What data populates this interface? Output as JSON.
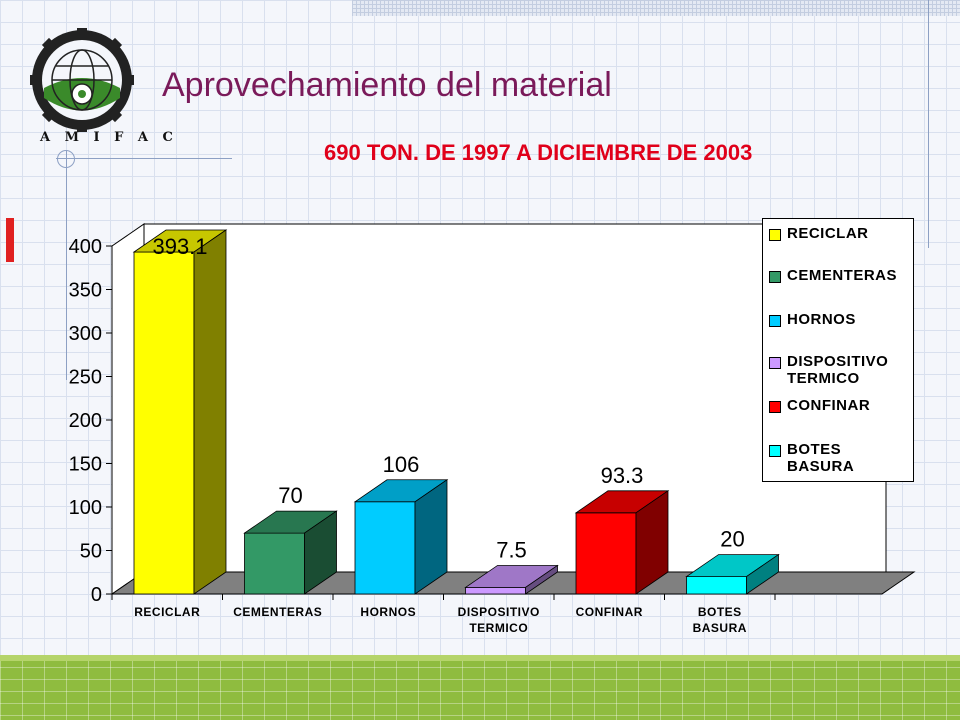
{
  "header": {
    "logo_text": "A M I F A C",
    "title": "Aprovechamiento  del material",
    "subtitle": "690  TON. DE 1997 A DICIEMBRE DE 2003"
  },
  "colors": {
    "title": "#7a1a5a",
    "subtitle": "#e0001a",
    "floor": "#808080"
  },
  "chart_data": {
    "type": "bar",
    "categories": [
      "RECICLAR",
      "CEMENTERAS",
      "HORNOS",
      "DISPOSITIVO TERMICO",
      "CONFINAR",
      "BOTES BASURA"
    ],
    "category_lines": [
      [
        "RECICLAR"
      ],
      [
        "CEMENTERAS"
      ],
      [
        "HORNOS"
      ],
      [
        "DISPOSITIVO",
        "TERMICO"
      ],
      [
        "CONFINAR"
      ],
      [
        "BOTES",
        "BASURA"
      ]
    ],
    "values": [
      393.1,
      70,
      106,
      7.5,
      93.3,
      20
    ],
    "data_labels": [
      "393.1",
      "70",
      "106",
      "7.5",
      "93.3",
      "20"
    ],
    "colors": [
      "#ffff00",
      "#339966",
      "#00ccff",
      "#cc99ff",
      "#ff0000",
      "#00ffff"
    ],
    "yticks": [
      0,
      50,
      100,
      150,
      200,
      250,
      300,
      350,
      400
    ],
    "ylim": [
      0,
      400
    ],
    "legend": {
      "position": "right",
      "items": [
        {
          "label": "RECICLAR",
          "color": "#ffff00"
        },
        {
          "label": "CEMENTERAS",
          "color": "#339966"
        },
        {
          "label": "HORNOS",
          "color": "#00ccff"
        },
        {
          "label": "DISPOSITIVO\nTERMICO",
          "color": "#cc99ff"
        },
        {
          "label": "CONFINAR",
          "color": "#ff0000"
        },
        {
          "label": "BOTES\nBASURA",
          "color": "#00ffff"
        }
      ]
    }
  }
}
